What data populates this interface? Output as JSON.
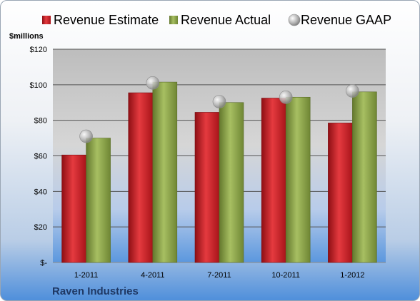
{
  "chart_data": {
    "type": "bar",
    "unit_label": "$millions",
    "company": "Raven Industries",
    "categories": [
      "1-2011",
      "4-2011",
      "7-2011",
      "10-2011",
      "1-2012"
    ],
    "series": [
      {
        "name": "Revenue Estimate",
        "type": "bar",
        "color": "#c41a1f",
        "values": [
          60.5,
          95.5,
          84.5,
          92.5,
          78.5
        ]
      },
      {
        "name": "Revenue Actual",
        "type": "bar",
        "color": "#8ea64a",
        "values": [
          70.0,
          101.5,
          90.0,
          93.0,
          96.0
        ]
      },
      {
        "name": "Revenue GAAP",
        "type": "scatter",
        "color": "#b8b8b8",
        "values": [
          71.0,
          101.0,
          90.5,
          93.0,
          96.5
        ]
      }
    ],
    "y_ticks": [
      {
        "value": 0,
        "label": "$-"
      },
      {
        "value": 20,
        "label": "$20"
      },
      {
        "value": 40,
        "label": "$40"
      },
      {
        "value": 60,
        "label": "$60"
      },
      {
        "value": 80,
        "label": "$80"
      },
      {
        "value": 100,
        "label": "$100"
      },
      {
        "value": 120,
        "label": "$120"
      }
    ],
    "ylim": [
      0,
      120
    ],
    "grid": true,
    "legend_position": "top"
  }
}
